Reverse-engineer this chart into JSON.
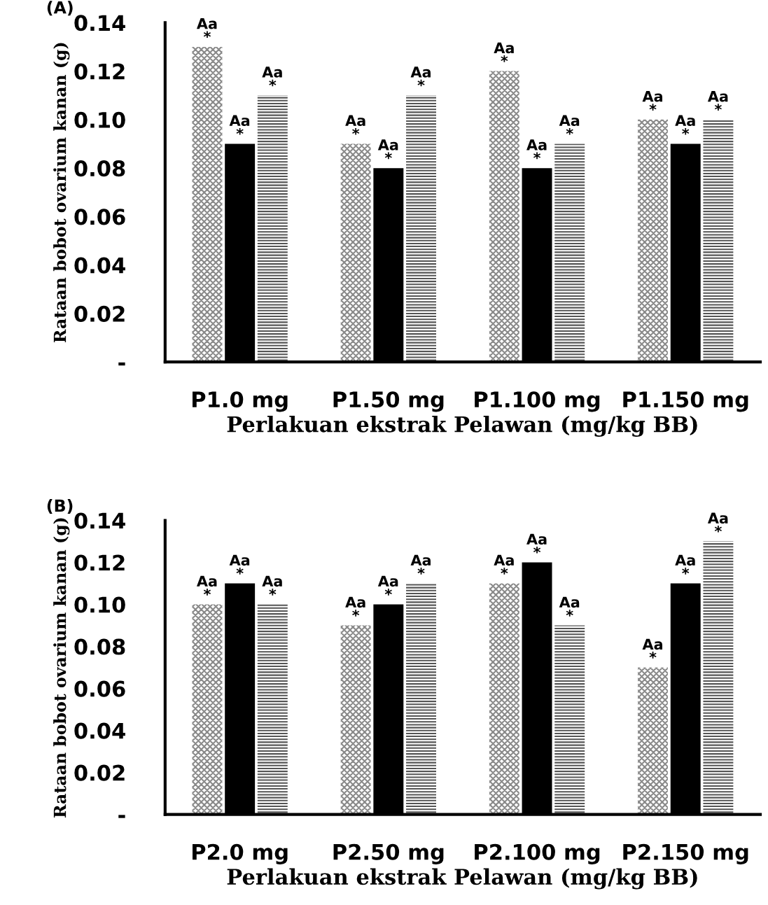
{
  "chart_data": [
    {
      "type": "bar",
      "title": "(A)",
      "xlabel": "Perlakuan ekstrak Pelawan (mg/kg BB)",
      "ylabel": "Rataan bobot ovarium kanan (g)",
      "categories": [
        "P1.0 mg",
        "P1.50 mg",
        "P1.100 mg",
        "P1.150 mg"
      ],
      "ylim": [
        0,
        0.14
      ],
      "yticks": [
        {
          "value": 0,
          "label": "-"
        },
        {
          "value": 0.02,
          "label": "0.02"
        },
        {
          "value": 0.04,
          "label": "0.04"
        },
        {
          "value": 0.06,
          "label": "0.06"
        },
        {
          "value": 0.08,
          "label": "0.08"
        },
        {
          "value": 0.1,
          "label": "0.10"
        },
        {
          "value": 0.12,
          "label": "0.12"
        },
        {
          "value": 0.14,
          "label": "0.14"
        }
      ],
      "grid": false,
      "legend": false,
      "series": [
        {
          "color": "#8a8a8a",
          "values": [
            0.13,
            0.09,
            0.12,
            0.1
          ],
          "value_labels": [
            "Aa\n*",
            "Aa\n*",
            "Aa\n*",
            "Aa\n*"
          ]
        },
        {
          "color": "#000000",
          "values": [
            0.09,
            0.08,
            0.08,
            0.09
          ],
          "value_labels": [
            "Aa\n*",
            "Aa\n*",
            "Aa\n*",
            "Aa\n*"
          ]
        },
        {
          "color": "#555555",
          "values": [
            0.11,
            0.11,
            0.09,
            0.1
          ],
          "value_labels": [
            "Aa\n*",
            "Aa\n*",
            "Aa\n*",
            "Aa\n*"
          ]
        }
      ]
    },
    {
      "type": "bar",
      "title": "(B)",
      "xlabel": "Perlakuan ekstrak Pelawan (mg/kg BB)",
      "ylabel": "Rataan bobot ovarium kanan (g)",
      "categories": [
        "P2.0 mg",
        "P2.50 mg",
        "P2.100 mg",
        "P2.150 mg"
      ],
      "ylim": [
        0,
        0.14
      ],
      "yticks": [
        {
          "value": 0,
          "label": "-"
        },
        {
          "value": 0.02,
          "label": "0.02"
        },
        {
          "value": 0.04,
          "label": "0.04"
        },
        {
          "value": 0.06,
          "label": "0.06"
        },
        {
          "value": 0.08,
          "label": "0.08"
        },
        {
          "value": 0.1,
          "label": "0.10"
        },
        {
          "value": 0.12,
          "label": "0.12"
        },
        {
          "value": 0.14,
          "label": "0.14"
        }
      ],
      "grid": false,
      "legend": false,
      "series": [
        {
          "color": "#8a8a8a",
          "values": [
            0.1,
            0.09,
            0.11,
            0.07
          ],
          "value_labels": [
            "Aa\n*",
            "Aa\n*",
            "Aa\n*",
            "Aa\n*"
          ]
        },
        {
          "color": "#000000",
          "values": [
            0.11,
            0.1,
            0.12,
            0.11
          ],
          "value_labels": [
            "Aa\n*",
            "Aa\n*",
            "Aa\n*",
            "Aa\n*"
          ]
        },
        {
          "color": "#555555",
          "values": [
            0.1,
            0.11,
            0.09,
            0.13
          ],
          "value_labels": [
            "Aa\n*",
            "Aa\n*",
            "Aa\n*",
            "Aa\n*"
          ]
        }
      ]
    }
  ]
}
